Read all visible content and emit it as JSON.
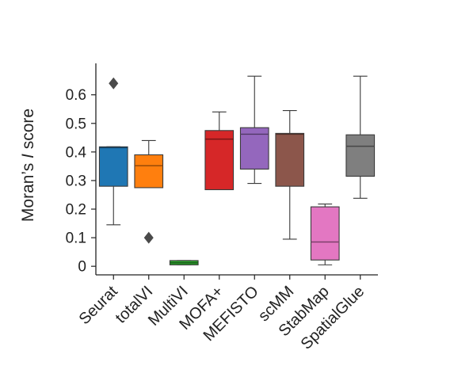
{
  "chart_data": {
    "type": "box",
    "title": "",
    "xlabel": "",
    "ylabel": "Moran’s I score",
    "ylabel_parts": [
      "Moran’s ",
      "I",
      " score"
    ],
    "ylim": [
      -0.03,
      0.71
    ],
    "yticks": [
      0,
      0.1,
      0.2,
      0.3,
      0.4,
      0.5,
      0.6
    ],
    "ytick_labels": [
      "0",
      "0.1",
      "0.2",
      "0.3",
      "0.4",
      "0.5",
      "0.6"
    ],
    "grid": false,
    "legend": "none",
    "categories": [
      "Seurat",
      "totalVI",
      "MultiVI",
      "MOFA+",
      "MEFISTO",
      "scMM",
      "StabMap",
      "SpatialGlue"
    ],
    "boxes": [
      {
        "name": "Seurat",
        "color": "#1f77b4",
        "whisker_low": 0.145,
        "q1": 0.28,
        "median": 0.415,
        "q3": 0.418,
        "whisker_high": 0.418,
        "outliers": [
          0.64
        ]
      },
      {
        "name": "totalVI",
        "color": "#ff7f0e",
        "whisker_low": 0.275,
        "q1": 0.275,
        "median": 0.352,
        "q3": 0.39,
        "whisker_high": 0.44,
        "outliers": [
          0.1
        ]
      },
      {
        "name": "MultiVI",
        "color": "#2ca02c",
        "whisker_low": 0.005,
        "q1": 0.005,
        "median": 0.012,
        "q3": 0.02,
        "whisker_high": 0.02,
        "outliers": []
      },
      {
        "name": "MOFA+",
        "color": "#d62728",
        "whisker_low": 0.268,
        "q1": 0.268,
        "median": 0.445,
        "q3": 0.475,
        "whisker_high": 0.54,
        "outliers": []
      },
      {
        "name": "MEFISTO",
        "color": "#9467bd",
        "whisker_low": 0.29,
        "q1": 0.34,
        "median": 0.462,
        "q3": 0.485,
        "whisker_high": 0.665,
        "outliers": []
      },
      {
        "name": "scMM",
        "color": "#8c564b",
        "whisker_low": 0.095,
        "q1": 0.28,
        "median": 0.462,
        "q3": 0.465,
        "whisker_high": 0.545,
        "outliers": []
      },
      {
        "name": "StabMap",
        "color": "#e377c2",
        "whisker_low": 0.005,
        "q1": 0.022,
        "median": 0.085,
        "q3": 0.208,
        "whisker_high": 0.218,
        "outliers": []
      },
      {
        "name": "SpatialGlue",
        "color": "#7f7f7f",
        "whisker_low": 0.238,
        "q1": 0.315,
        "median": 0.42,
        "q3": 0.46,
        "whisker_high": 0.665,
        "outliers": []
      }
    ]
  }
}
